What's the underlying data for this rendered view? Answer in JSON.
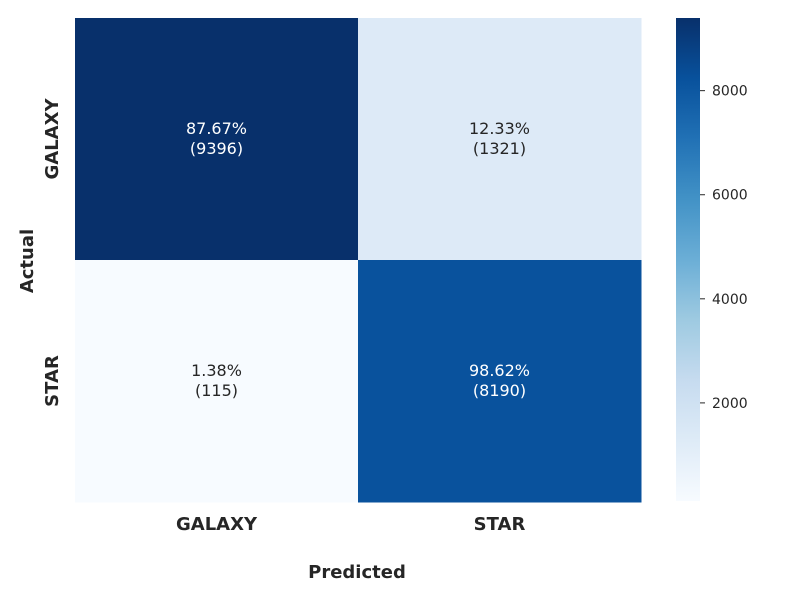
{
  "chart_data": {
    "type": "heatmap",
    "title": "",
    "xlabel": "Predicted",
    "ylabel": "Actual",
    "x_categories": [
      "GALAXY",
      "STAR"
    ],
    "y_categories": [
      "GALAXY",
      "STAR"
    ],
    "values": [
      [
        9396,
        1321
      ],
      [
        115,
        8190
      ]
    ],
    "cell_labels": [
      [
        {
          "percent": "87.67%",
          "count": "(9396)"
        },
        {
          "percent": "12.33%",
          "count": "(1321)"
        }
      ],
      [
        {
          "percent": "1.38%",
          "count": "(115)"
        },
        {
          "percent": "98.62%",
          "count": "(8190)"
        }
      ]
    ],
    "colormap": "Blues",
    "color_range": [
      115,
      9396
    ],
    "colorbar_ticks": [
      2000,
      4000,
      6000,
      8000
    ],
    "grid": false,
    "colorbar": "right"
  }
}
